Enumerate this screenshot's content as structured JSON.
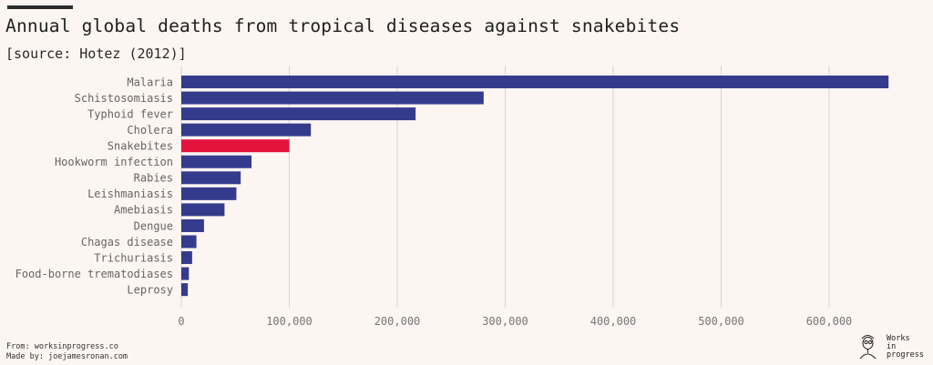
{
  "chart_data": {
    "type": "bar",
    "orientation": "horizontal",
    "title": "Annual global deaths from tropical diseases against snakebites",
    "subtitle": "[source: Hotez (2012)]",
    "categories": [
      "Malaria",
      "Schistosomiasis",
      "Typhoid fever",
      "Cholera",
      "Snakebites",
      "Hookworm infection",
      "Rabies",
      "Leishmaniasis",
      "Amebiasis",
      "Dengue",
      "Chagas disease",
      "Trichuriasis",
      "Food-borne trematodiases",
      "Leprosy"
    ],
    "values": [
      655000,
      280000,
      217000,
      120000,
      100000,
      65000,
      55000,
      51000,
      40000,
      21000,
      14000,
      10000,
      7000,
      6000
    ],
    "highlight": "Snakebites",
    "xlim": [
      0,
      650000
    ],
    "xticks": [
      0,
      100000,
      200000,
      300000,
      400000,
      500000,
      600000
    ],
    "xtick_labels": [
      "0",
      "100,000",
      "200,000",
      "300,000",
      "400,000",
      "500,000",
      "600,000"
    ],
    "colors": {
      "bar": "#353b8c",
      "highlight": "#e4133e",
      "grid": "#d9d3d0",
      "background": "#fcf5f2"
    }
  },
  "footer": {
    "from": "From: worksinprogress.co",
    "made_by": "Made by: joejamesronan.com"
  },
  "logo": {
    "line1": "Works",
    "line2": "in",
    "line3": "progress",
    "icon": "person-portrait-icon"
  }
}
